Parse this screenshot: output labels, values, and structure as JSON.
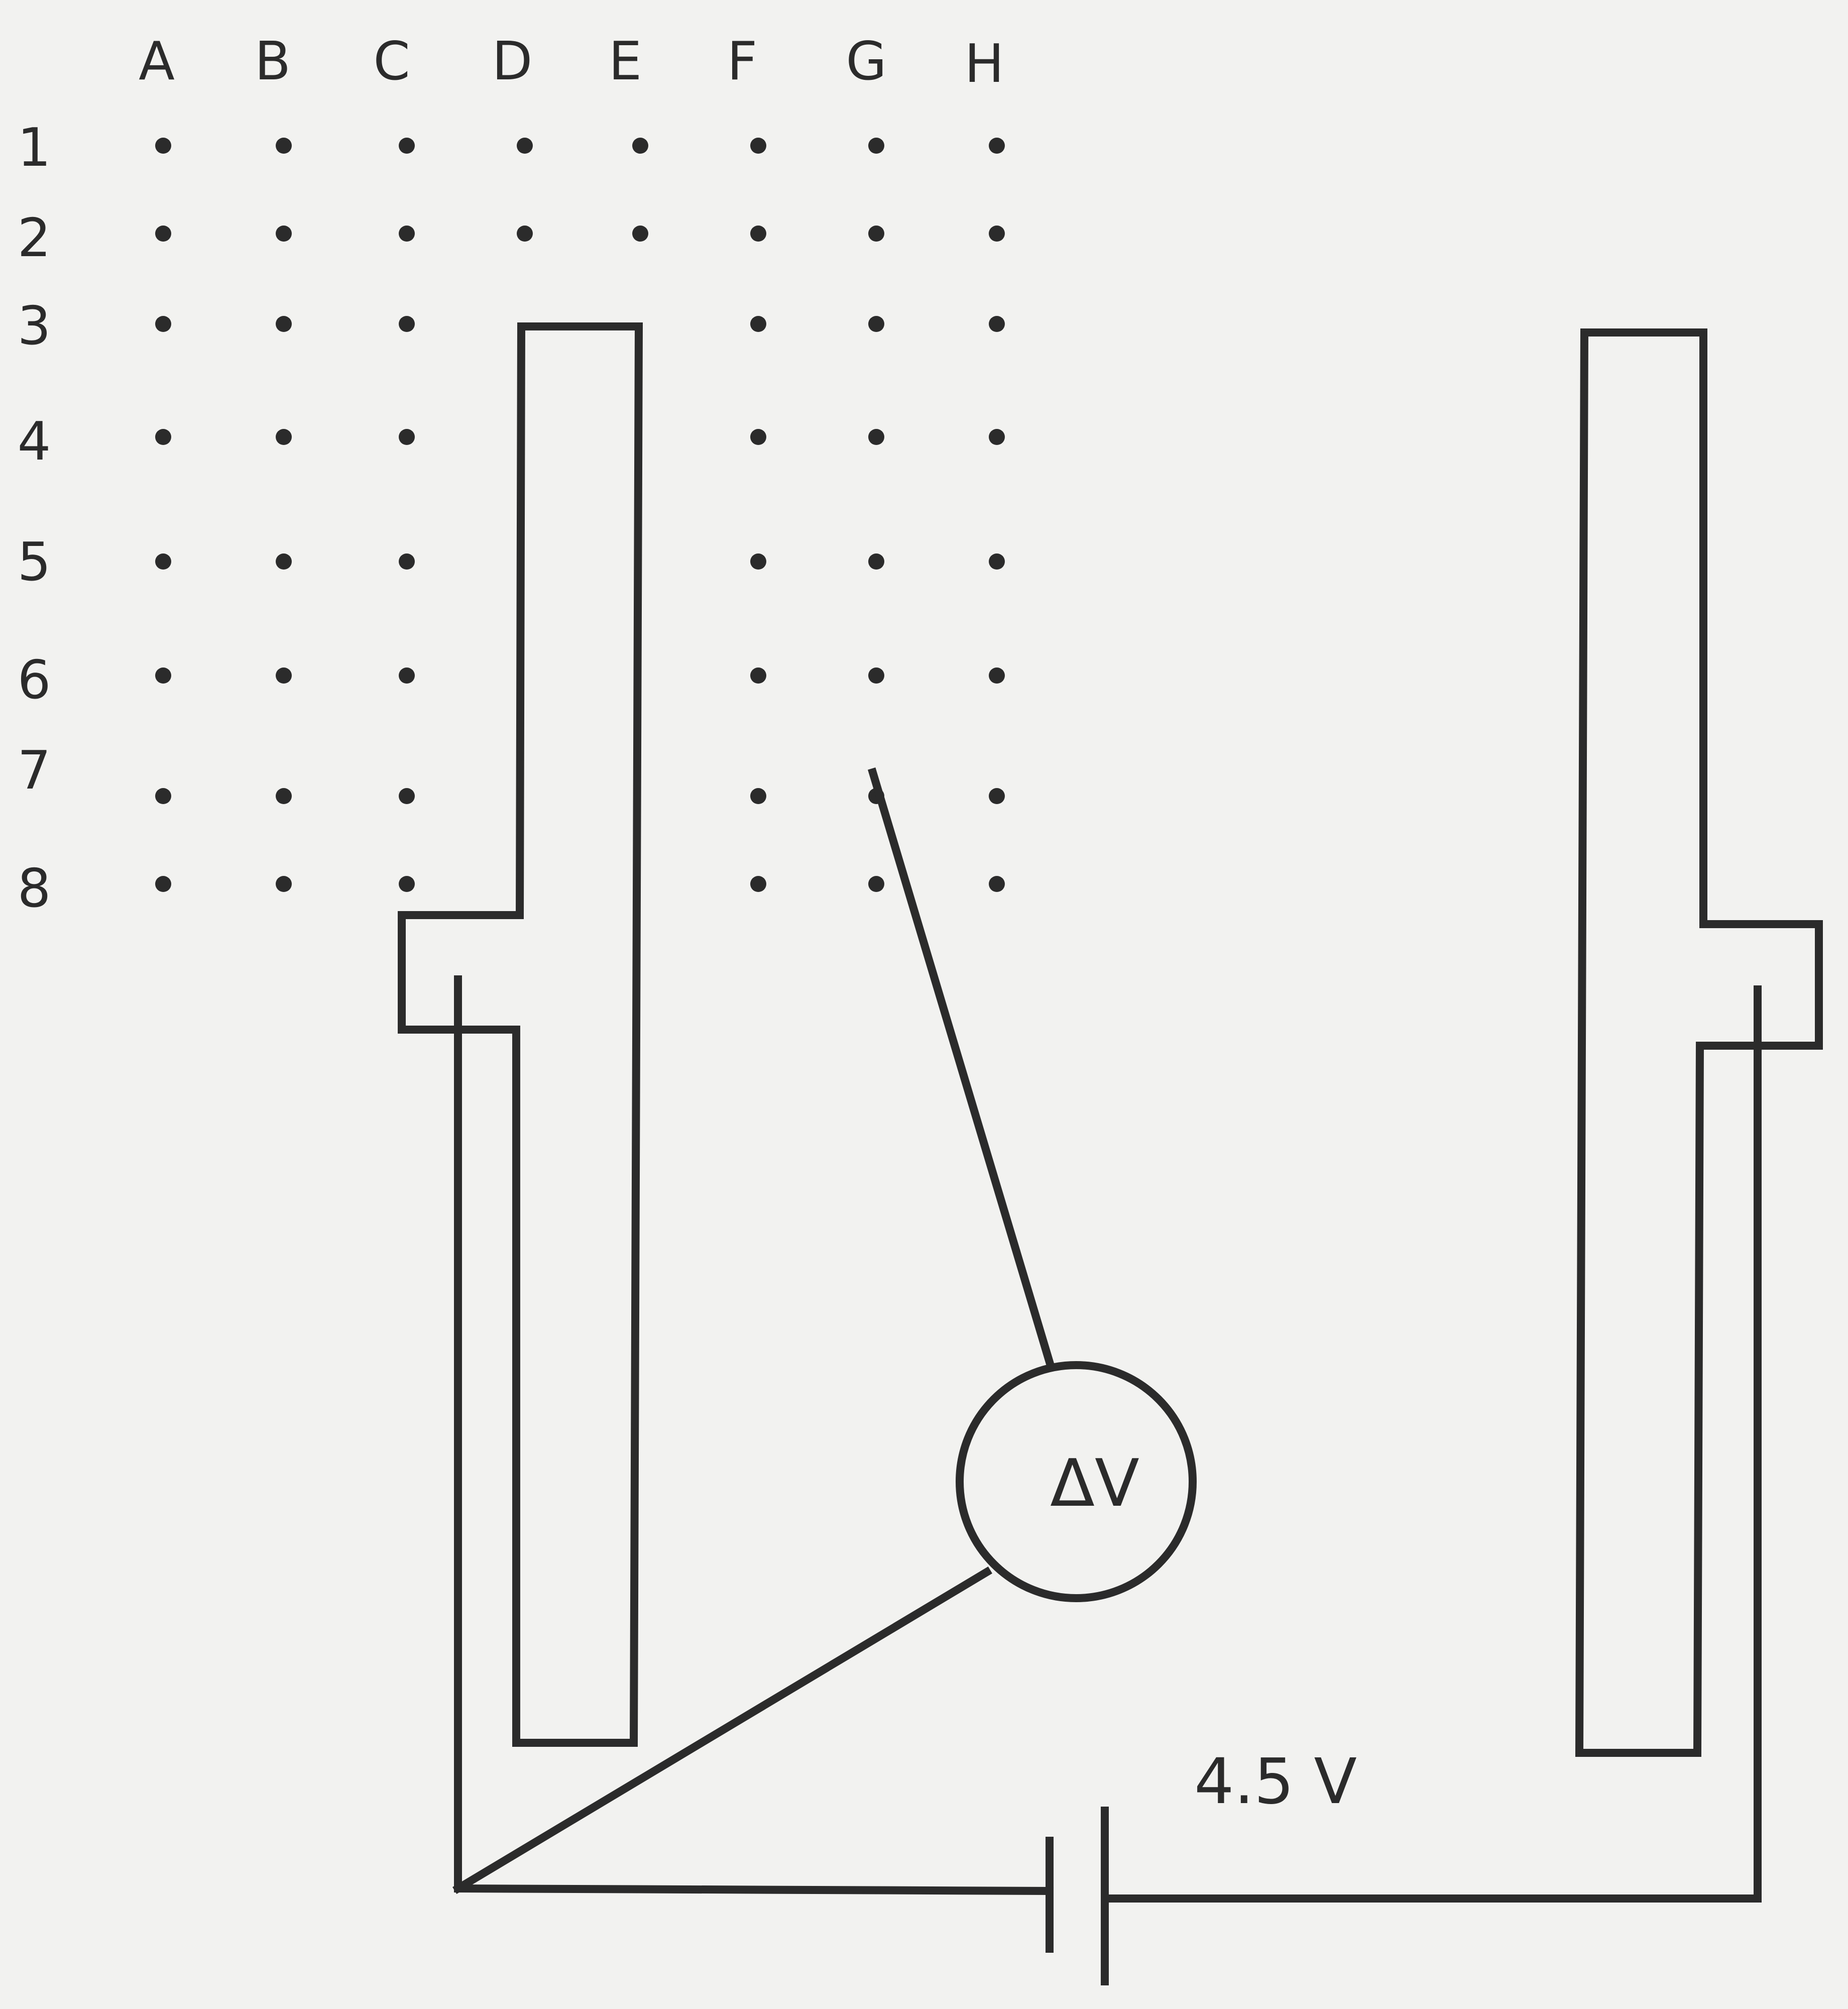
{
  "grid": {
    "columns": [
      "A",
      "B",
      "C",
      "D",
      "E",
      "F",
      "G",
      "H"
    ],
    "rows": [
      "1",
      "2",
      "3",
      "4",
      "5",
      "6",
      "7",
      "8"
    ]
  },
  "meter": {
    "symbol": "ΔV"
  },
  "battery": {
    "voltage": "4.5 V"
  }
}
